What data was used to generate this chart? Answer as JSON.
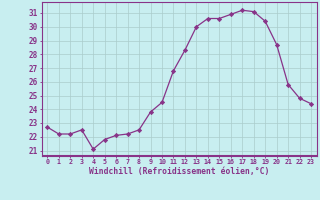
{
  "x": [
    0,
    1,
    2,
    3,
    4,
    5,
    6,
    7,
    8,
    9,
    10,
    11,
    12,
    13,
    14,
    15,
    16,
    17,
    18,
    19,
    20,
    21,
    22,
    23
  ],
  "y": [
    22.7,
    22.2,
    22.2,
    22.5,
    21.1,
    21.8,
    22.1,
    22.2,
    22.5,
    23.8,
    24.5,
    26.8,
    28.3,
    30.0,
    30.6,
    30.6,
    30.9,
    31.2,
    31.1,
    30.4,
    28.7,
    25.8,
    24.8,
    24.4
  ],
  "line_color": "#883388",
  "marker": "D",
  "marker_size": 2.2,
  "bg_color": "#c8eef0",
  "grid_color": "#aacccc",
  "xlabel": "Windchill (Refroidissement éolien,°C)",
  "xlabel_color": "#883388",
  "ytick_vals": [
    21,
    22,
    23,
    24,
    25,
    26,
    27,
    28,
    29,
    30,
    31
  ],
  "ylim": [
    20.6,
    31.8
  ],
  "xlim": [
    -0.5,
    23.5
  ],
  "xtick_labels": [
    "0",
    "1",
    "2",
    "3",
    "4",
    "5",
    "6",
    "7",
    "8",
    "9",
    "10",
    "11",
    "12",
    "13",
    "14",
    "15",
    "16",
    "17",
    "18",
    "19",
    "20",
    "21",
    "22",
    "23"
  ]
}
